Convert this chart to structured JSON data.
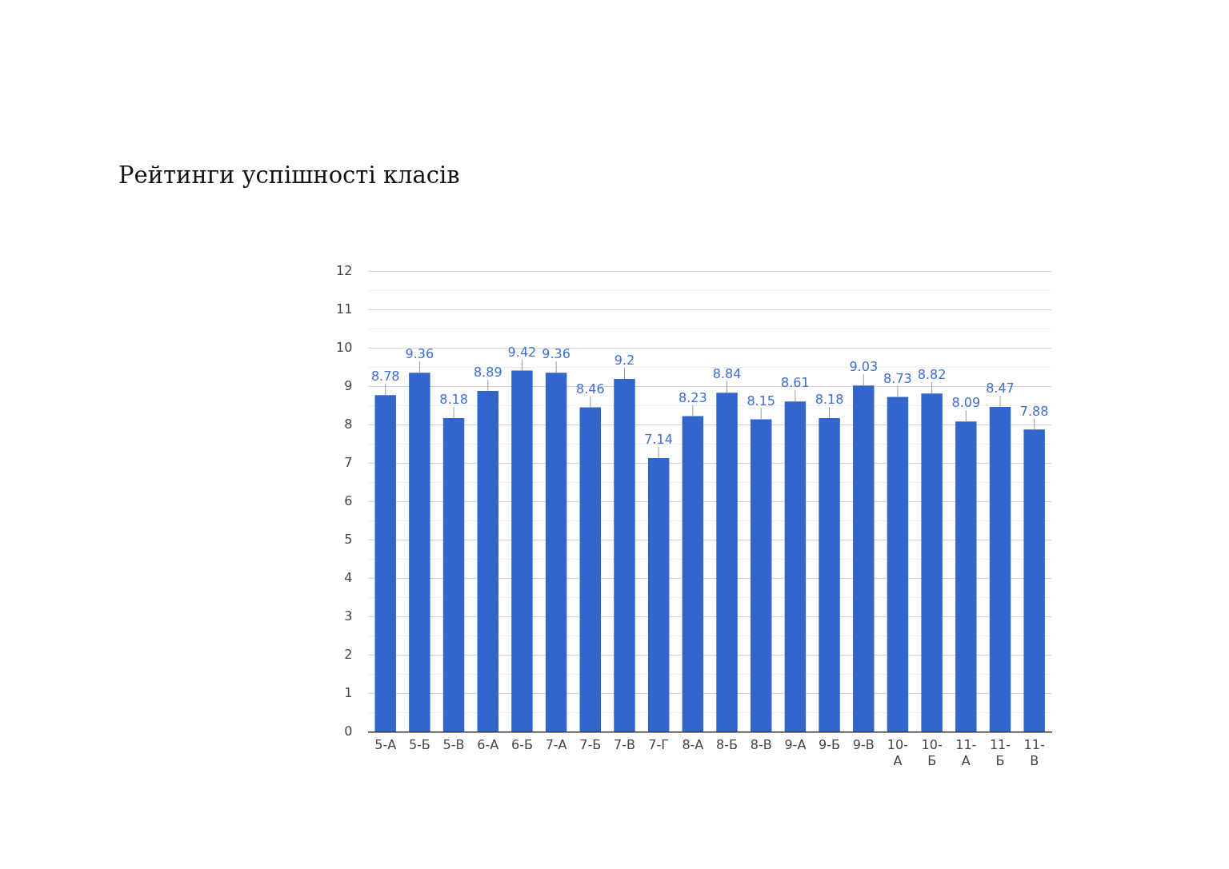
{
  "chart_data": {
    "type": "bar",
    "title": "Рейтинги успішності класів",
    "categories": [
      "5-А",
      "5-Б",
      "5-В",
      "6-А",
      "6-Б",
      "7-А",
      "7-Б",
      "7-В",
      "7-Г",
      "8-А",
      "8-Б",
      "8-В",
      "9-А",
      "9-Б",
      "9-В",
      "10-А",
      "10-Б",
      "11-А",
      "11-Б",
      "11-В"
    ],
    "values": [
      8.78,
      9.36,
      8.18,
      8.89,
      9.42,
      9.36,
      8.46,
      9.2,
      7.14,
      8.23,
      8.84,
      8.15,
      8.61,
      8.18,
      9.03,
      8.73,
      8.82,
      8.09,
      8.47,
      7.88
    ],
    "color": "#3366cc",
    "ylim": [
      0,
      12
    ],
    "yticks": [
      0,
      {
        "value": 0.5,
        "label": null
      },
      1,
      {
        "value": 1.5,
        "label": null
      },
      2,
      {
        "value": 2.5,
        "label": null
      },
      3,
      {
        "value": 3.5,
        "label": null
      },
      4,
      {
        "value": 4.5,
        "label": null
      },
      5,
      {
        "value": 5.5,
        "label": null
      },
      6,
      {
        "value": 6.5,
        "label": null
      },
      7,
      {
        "value": 7.5,
        "label": null
      },
      8,
      {
        "value": 8.5,
        "label": null
      },
      9,
      {
        "value": 9.5,
        "label": null
      },
      10,
      {
        "value": 10.5,
        "label": null
      },
      11,
      {
        "value": 11.5,
        "label": null
      },
      12
    ],
    "grid": "y",
    "data_labels": true
  }
}
